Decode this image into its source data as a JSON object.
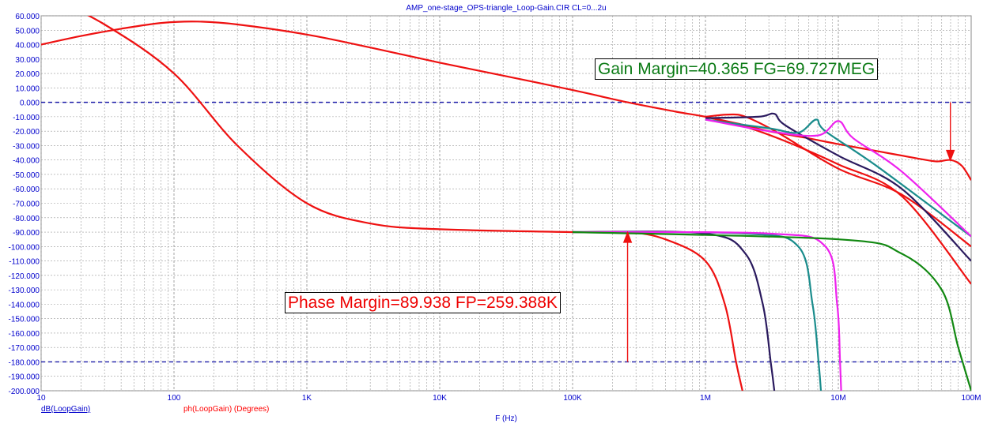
{
  "chart_data": {
    "type": "line",
    "title": "AMP_one-stage_OPS-triangle_Loop-Gain.CIR CL=0...2u",
    "xlabel": "F (Hz)",
    "ylabel": "dB(LoopGain)",
    "ylabel2": "ph(LoopGain) (Degrees)",
    "x_scale": "log",
    "xlim": [
      10,
      100000000
    ],
    "ylim": [
      -200,
      60
    ],
    "x_ticks": [
      {
        "v": 10,
        "label": "10"
      },
      {
        "v": 100,
        "label": "100"
      },
      {
        "v": 1000,
        "label": "1K"
      },
      {
        "v": 10000,
        "label": "10K"
      },
      {
        "v": 100000,
        "label": "100K"
      },
      {
        "v": 1000000,
        "label": "1M"
      },
      {
        "v": 10000000,
        "label": "10M"
      },
      {
        "v": 100000000,
        "label": "100M"
      }
    ],
    "y_ticks": [
      60,
      50,
      40,
      30,
      20,
      10,
      0,
      -10,
      -20,
      -30,
      -40,
      -50,
      -60,
      -70,
      -80,
      -90,
      -100,
      -110,
      -120,
      -130,
      -140,
      -150,
      -160,
      -170,
      -180,
      -190,
      -200
    ],
    "y_tick_labels": [
      "60.000",
      "50.000",
      "40.000",
      "30.000",
      "20.000",
      "10.000",
      "0.000",
      "-10.000",
      "-20.000",
      "-30.000",
      "-40.000",
      "-50.000",
      "-60.000",
      "-70.000",
      "-80.000",
      "-90.000",
      "-100.000",
      "-110.000",
      "-120.000",
      "-130.000",
      "-140.000",
      "-150.000",
      "-160.000",
      "-170.000",
      "-180.000",
      "-190.000",
      "-200.000"
    ],
    "grid": true,
    "reference_lines": [
      0,
      -180
    ],
    "colors": {
      "red": "#ee1111",
      "navy": "#2a1a5e",
      "teal": "#1a8c8c",
      "magenta": "#ee22ee",
      "green": "#118811",
      "grid": "#9a9a9a",
      "axis_label": "#0000cc"
    },
    "series": [
      {
        "group": "gain",
        "color": "red",
        "points": [
          [
            10,
            40
          ],
          [
            20,
            46
          ],
          [
            40,
            51
          ],
          [
            80,
            55
          ],
          [
            150,
            56
          ],
          [
            300,
            54
          ],
          [
            1000,
            47
          ],
          [
            3000,
            38
          ],
          [
            10000,
            27.5
          ],
          [
            30000,
            18.5
          ],
          [
            100000,
            8.5
          ],
          [
            259388,
            0
          ],
          [
            600000,
            -6.5
          ],
          [
            1000000,
            -10
          ],
          [
            1800000,
            -15
          ],
          [
            3000000,
            -20
          ],
          [
            6000000,
            -25
          ],
          [
            10000000,
            -29
          ],
          [
            20000000,
            -34
          ],
          [
            40000000,
            -39
          ],
          [
            55000000,
            -41
          ],
          [
            70000000,
            -40
          ],
          [
            85000000,
            -44
          ],
          [
            100000000,
            -54
          ]
        ]
      },
      {
        "group": "gain",
        "color": "red",
        "points": [
          [
            1000000,
            -10
          ],
          [
            2000000,
            -17
          ],
          [
            4000000,
            -27
          ],
          [
            10000000,
            -43
          ],
          [
            30000000,
            -65
          ],
          [
            100000000,
            -126
          ]
        ]
      },
      {
        "group": "gain",
        "color": "red",
        "points": [
          [
            1000000,
            -10
          ],
          [
            1500000,
            -8.5
          ],
          [
            2000000,
            -10
          ],
          [
            3500000,
            -21
          ],
          [
            10000000,
            -46
          ],
          [
            30000000,
            -64
          ],
          [
            100000000,
            -100
          ]
        ]
      },
      {
        "group": "gain",
        "color": "navy",
        "points": [
          [
            1000000,
            -11
          ],
          [
            2500000,
            -10
          ],
          [
            3300000,
            -8
          ],
          [
            4000000,
            -16
          ],
          [
            10000000,
            -37
          ],
          [
            30000000,
            -60
          ],
          [
            100000000,
            -110
          ]
        ]
      },
      {
        "group": "gain",
        "color": "teal",
        "points": [
          [
            1000000,
            -12
          ],
          [
            3000000,
            -18
          ],
          [
            5000000,
            -21
          ],
          [
            6800000,
            -12
          ],
          [
            8000000,
            -20
          ],
          [
            20000000,
            -45
          ],
          [
            100000000,
            -93
          ]
        ]
      },
      {
        "group": "gain",
        "color": "magenta",
        "points": [
          [
            1000000,
            -12
          ],
          [
            3000000,
            -20
          ],
          [
            7000000,
            -23
          ],
          [
            10000000,
            -13
          ],
          [
            13000000,
            -25
          ],
          [
            30000000,
            -48
          ],
          [
            100000000,
            -93
          ]
        ]
      },
      {
        "group": "phase",
        "color": "red",
        "points": [
          [
            10,
            76
          ],
          [
            30,
            54
          ],
          [
            100,
            20
          ],
          [
            300,
            -30
          ],
          [
            1000,
            -70
          ],
          [
            3000,
            -84
          ],
          [
            10000,
            -88
          ],
          [
            100000,
            -90
          ],
          [
            259388,
            -90
          ],
          [
            500000,
            -95
          ],
          [
            1000000,
            -110
          ],
          [
            1400000,
            -140
          ],
          [
            1700000,
            -180
          ],
          [
            1900000,
            -200
          ]
        ]
      },
      {
        "group": "phase",
        "color": "navy",
        "points": [
          [
            100000,
            -90
          ],
          [
            1000000,
            -91
          ],
          [
            2000000,
            -105
          ],
          [
            2700000,
            -140
          ],
          [
            3100000,
            -180
          ],
          [
            3300000,
            -200
          ]
        ]
      },
      {
        "group": "phase",
        "color": "teal",
        "points": [
          [
            100000,
            -90
          ],
          [
            2000000,
            -91
          ],
          [
            5000000,
            -100
          ],
          [
            6400000,
            -140
          ],
          [
            7100000,
            -180
          ],
          [
            7400000,
            -200
          ]
        ]
      },
      {
        "group": "phase",
        "color": "magenta",
        "points": [
          [
            100000,
            -90
          ],
          [
            3000000,
            -91
          ],
          [
            8000000,
            -100
          ],
          [
            9800000,
            -140
          ],
          [
            10300000,
            -180
          ],
          [
            10500000,
            -200
          ]
        ]
      },
      {
        "group": "phase",
        "color": "green",
        "points": [
          [
            100000,
            -90
          ],
          [
            10000000,
            -95
          ],
          [
            30000000,
            -105
          ],
          [
            60000000,
            -130
          ],
          [
            80000000,
            -170
          ],
          [
            100000000,
            -200
          ]
        ]
      }
    ],
    "markers": [
      {
        "label": "Gain Margin=40.365 FG=69.727MEG",
        "color": "green",
        "x": 69727000,
        "from": 0,
        "to": -40.365
      },
      {
        "label": "Phase Margin=89.938 FP=259.388K",
        "color": "red",
        "x": 259388,
        "from": -180,
        "to": -90.062
      }
    ]
  }
}
